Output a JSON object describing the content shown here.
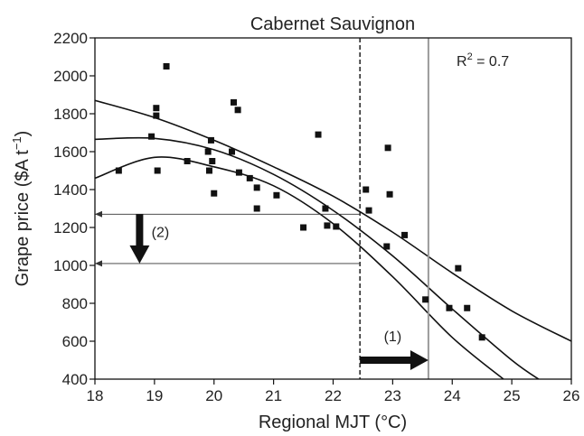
{
  "chart_data": {
    "type": "scatter",
    "title": "Cabernet Sauvignon",
    "xlabel": "Regional MJT (°C)",
    "ylabel_main": "Grape price ($A t",
    "ylabel_exp": "−1",
    "ylabel_tail": ")",
    "xlim": [
      18,
      26
    ],
    "ylim": [
      400,
      2200
    ],
    "xticks": [
      "18",
      "19",
      "20",
      "21",
      "22",
      "23",
      "24",
      "25",
      "26"
    ],
    "yticks": [
      "400",
      "600",
      "800",
      "1000",
      "1200",
      "1400",
      "1600",
      "1800",
      "2000",
      "2200"
    ],
    "grid": false,
    "r2_prefix": "R",
    "r2_exp": "2",
    "r2_suffix": " = 0.7",
    "points": [
      {
        "x": 18.4,
        "y": 1500
      },
      {
        "x": 18.95,
        "y": 1680
      },
      {
        "x": 19.03,
        "y": 1830
      },
      {
        "x": 19.03,
        "y": 1790
      },
      {
        "x": 19.05,
        "y": 1500
      },
      {
        "x": 19.2,
        "y": 2050
      },
      {
        "x": 19.55,
        "y": 1550
      },
      {
        "x": 19.9,
        "y": 1600
      },
      {
        "x": 19.92,
        "y": 1500
      },
      {
        "x": 19.95,
        "y": 1660
      },
      {
        "x": 19.97,
        "y": 1550
      },
      {
        "x": 20.0,
        "y": 1380
      },
      {
        "x": 20.3,
        "y": 1600
      },
      {
        "x": 20.33,
        "y": 1860
      },
      {
        "x": 20.4,
        "y": 1820
      },
      {
        "x": 20.42,
        "y": 1490
      },
      {
        "x": 20.6,
        "y": 1460
      },
      {
        "x": 20.72,
        "y": 1410
      },
      {
        "x": 20.72,
        "y": 1300
      },
      {
        "x": 21.05,
        "y": 1370
      },
      {
        "x": 21.5,
        "y": 1200
      },
      {
        "x": 21.75,
        "y": 1690
      },
      {
        "x": 21.87,
        "y": 1300
      },
      {
        "x": 21.9,
        "y": 1210
      },
      {
        "x": 22.05,
        "y": 1205
      },
      {
        "x": 22.55,
        "y": 1400
      },
      {
        "x": 22.6,
        "y": 1290
      },
      {
        "x": 22.9,
        "y": 1100
      },
      {
        "x": 22.92,
        "y": 1620
      },
      {
        "x": 22.95,
        "y": 1375
      },
      {
        "x": 23.2,
        "y": 1160
      },
      {
        "x": 23.55,
        "y": 820
      },
      {
        "x": 23.95,
        "y": 775
      },
      {
        "x": 24.1,
        "y": 985
      },
      {
        "x": 24.25,
        "y": 775
      },
      {
        "x": 24.5,
        "y": 620
      }
    ],
    "fit_curves": [
      {
        "role": "upper",
        "x": [
          18,
          19,
          20,
          21,
          22,
          23,
          24,
          25,
          26
        ],
        "y": [
          1870,
          1780,
          1660,
          1520,
          1365,
          1175,
          960,
          760,
          600
        ]
      },
      {
        "role": "fit",
        "x": [
          18,
          19,
          20,
          21,
          22,
          23,
          24,
          25,
          25.5
        ],
        "y": [
          1665,
          1670,
          1610,
          1480,
          1290,
          1050,
          770,
          500,
          390
        ]
      },
      {
        "role": "lower",
        "x": [
          18,
          19,
          20,
          21,
          22,
          23,
          24,
          24.9
        ],
        "y": [
          1460,
          1570,
          1520,
          1420,
          1220,
          940,
          620,
          390
        ]
      }
    ],
    "threshold_lines": [
      {
        "x": 22.45,
        "style": "dashed"
      },
      {
        "x": 23.6,
        "style": "solid-grey"
      }
    ],
    "price_lines": [
      1270,
      1010
    ],
    "annotations": [
      {
        "label": "(1)",
        "arrow_from_x": 22.45,
        "arrow_to_x": 23.6,
        "arrow_y": 500,
        "label_x": 23.0,
        "label_y": 600
      },
      {
        "label": "(2)",
        "arrow_x": 18.75,
        "arrow_from_y": 1270,
        "arrow_to_y": 1010,
        "label_x": 19.1,
        "label_y": 1150
      }
    ]
  }
}
